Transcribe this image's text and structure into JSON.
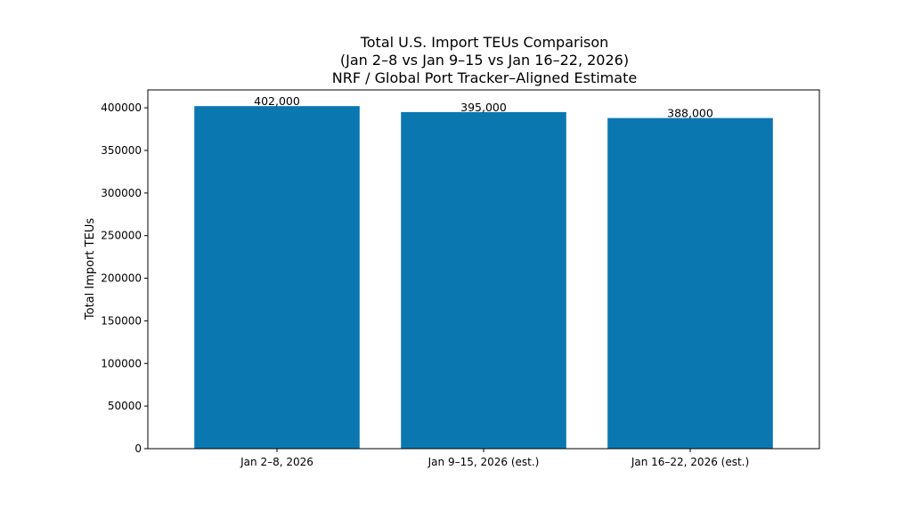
{
  "chart_data": {
    "type": "bar",
    "title_lines": [
      "Total U.S. Import TEUs Comparison",
      "(Jan 2–8 vs Jan 9–15 vs Jan 16–22, 2026)",
      "NRF / Global Port Tracker–Aligned Estimate"
    ],
    "categories": [
      "Jan 2–8, 2026",
      "Jan 9–15, 2026 (est.)",
      "Jan 16–22, 2026 (est.)"
    ],
    "values": [
      402000,
      395000,
      388000
    ],
    "value_labels": [
      "402,000",
      "395,000",
      "388,000"
    ],
    "xlabel": "",
    "ylabel": "Total Import TEUs",
    "ylim": [
      0,
      421000
    ],
    "yticks": [
      0,
      50000,
      100000,
      150000,
      200000,
      250000,
      300000,
      350000,
      400000
    ],
    "ytick_labels": [
      "0",
      "50000",
      "100000",
      "150000",
      "200000",
      "250000",
      "300000",
      "350000",
      "400000"
    ],
    "bar_color": "#0b77b1",
    "grid": false,
    "legend": "none"
  }
}
